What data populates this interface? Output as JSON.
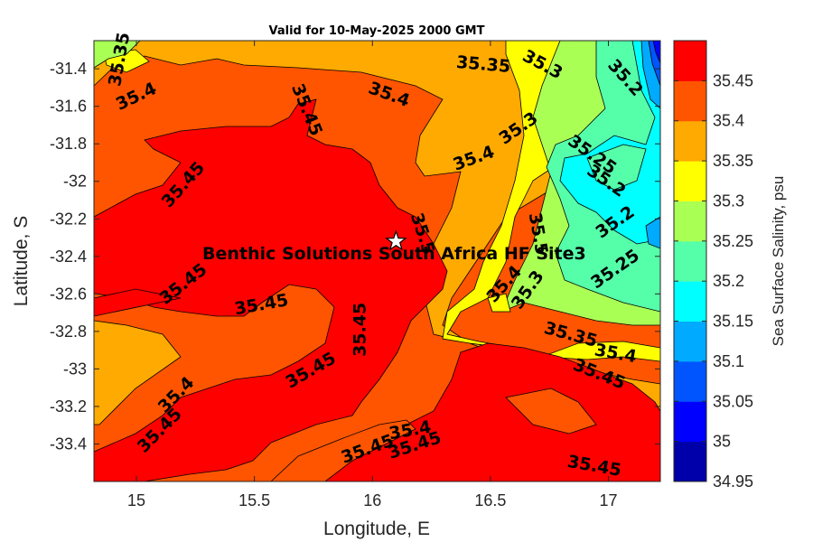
{
  "chart_data": {
    "type": "contour map",
    "title": "Valid for 10-May-2025 2000 GMT",
    "xlabel": "Longitude, E",
    "ylabel": "Latitude, S",
    "x_ticks": [
      "15",
      "15.5",
      "16",
      "16.5",
      "17"
    ],
    "x_tick_values": [
      15,
      15.5,
      16,
      16.5,
      17
    ],
    "y_ticks": [
      "-31.4",
      "-31.6",
      "-31.8",
      "-32",
      "-32.2",
      "-32.4",
      "-32.6",
      "-32.8",
      "-33",
      "-33.2",
      "-33.4"
    ],
    "y_tick_values": [
      -31.4,
      -31.6,
      -31.8,
      -32.0,
      -32.2,
      -32.4,
      -32.6,
      -32.8,
      -33.0,
      -33.2,
      -33.4
    ],
    "xlim": [
      14.82,
      17.22
    ],
    "ylim": [
      -33.6,
      -31.25
    ],
    "colorbar": {
      "label": "Sea Surface Salinity, psu",
      "ticks": [
        "34.95",
        "35",
        "35.05",
        "35.1",
        "35.15",
        "35.2",
        "35.25",
        "35.3",
        "35.35",
        "35.4",
        "35.45"
      ],
      "levels": [
        {
          "value": 34.95,
          "color": "#0000aa"
        },
        {
          "value": 35.0,
          "color": "#0000ff"
        },
        {
          "value": 35.05,
          "color": "#0055ff"
        },
        {
          "value": 35.1,
          "color": "#00aaff"
        },
        {
          "value": 35.15,
          "color": "#00ffff"
        },
        {
          "value": 35.2,
          "color": "#55ffaa"
        },
        {
          "value": 35.25,
          "color": "#aaff55"
        },
        {
          "value": 35.3,
          "color": "#ffff00"
        },
        {
          "value": 35.35,
          "color": "#ffaa00"
        },
        {
          "value": 35.4,
          "color": "#ff5500"
        },
        {
          "value": 35.45,
          "color": "#ff0000"
        }
      ]
    },
    "site": {
      "name": "Benthic Solutions South Africa HF Site3",
      "lon": 16.1,
      "lat": -32.32,
      "marker": "white star"
    },
    "contour_labels": [
      {
        "text": "35.35",
        "lon": 14.93,
        "lat": -31.35,
        "angle": -80
      },
      {
        "text": "35.4",
        "lon": 15.0,
        "lat": -31.55,
        "angle": -25
      },
      {
        "text": "35.4",
        "lon": 16.07,
        "lat": -31.54,
        "angle": 20
      },
      {
        "text": "35.45",
        "lon": 15.72,
        "lat": -31.62,
        "angle": 68
      },
      {
        "text": "35.35",
        "lon": 16.47,
        "lat": -31.38,
        "angle": 5
      },
      {
        "text": "35.3",
        "lon": 16.72,
        "lat": -31.38,
        "angle": 28
      },
      {
        "text": "35.2",
        "lon": 17.07,
        "lat": -31.45,
        "angle": 48
      },
      {
        "text": "35.3",
        "lon": 16.62,
        "lat": -31.72,
        "angle": -35
      },
      {
        "text": "35.4",
        "lon": 16.43,
        "lat": -31.88,
        "angle": -20
      },
      {
        "text": "35.45",
        "lon": 15.2,
        "lat": -32.02,
        "angle": -48
      },
      {
        "text": "35.25",
        "lon": 16.93,
        "lat": -31.86,
        "angle": 35
      },
      {
        "text": "35.2",
        "lon": 16.99,
        "lat": -32.0,
        "angle": 35
      },
      {
        "text": "35.2",
        "lon": 17.03,
        "lat": -32.22,
        "angle": -35
      },
      {
        "text": "35.25",
        "lon": 17.03,
        "lat": -32.47,
        "angle": -35
      },
      {
        "text": "35.5",
        "lon": 16.21,
        "lat": -32.28,
        "angle": 72
      },
      {
        "text": "35.5",
        "lon": 16.7,
        "lat": -32.28,
        "angle": 80
      },
      {
        "text": "35.4",
        "lon": 16.56,
        "lat": -32.55,
        "angle": -48
      },
      {
        "text": "35.3",
        "lon": 16.66,
        "lat": -32.58,
        "angle": -55
      },
      {
        "text": "35.45",
        "lon": 15.2,
        "lat": -32.55,
        "angle": -38
      },
      {
        "text": "35.45",
        "lon": 15.53,
        "lat": -32.66,
        "angle": -10
      },
      {
        "text": "35.45",
        "lon": 15.95,
        "lat": -32.79,
        "angle": -90
      },
      {
        "text": "35.35",
        "lon": 16.84,
        "lat": -32.82,
        "angle": 15
      },
      {
        "text": "35.4",
        "lon": 17.03,
        "lat": -32.92,
        "angle": 10
      },
      {
        "text": "35.45",
        "lon": 15.74,
        "lat": -33.01,
        "angle": -30
      },
      {
        "text": "35.45",
        "lon": 16.96,
        "lat": -33.03,
        "angle": 22
      },
      {
        "text": "35.4",
        "lon": 15.17,
        "lat": -33.14,
        "angle": -45
      },
      {
        "text": "35.45",
        "lon": 15.1,
        "lat": -33.33,
        "angle": -45
      },
      {
        "text": "35.4",
        "lon": 16.16,
        "lat": -33.33,
        "angle": -10
      },
      {
        "text": "35.45",
        "lon": 16.18,
        "lat": -33.41,
        "angle": -18
      },
      {
        "text": "35.45",
        "lon": 15.98,
        "lat": -33.43,
        "angle": -20
      },
      {
        "text": "35.45",
        "lon": 16.94,
        "lat": -33.52,
        "angle": 10
      }
    ]
  }
}
